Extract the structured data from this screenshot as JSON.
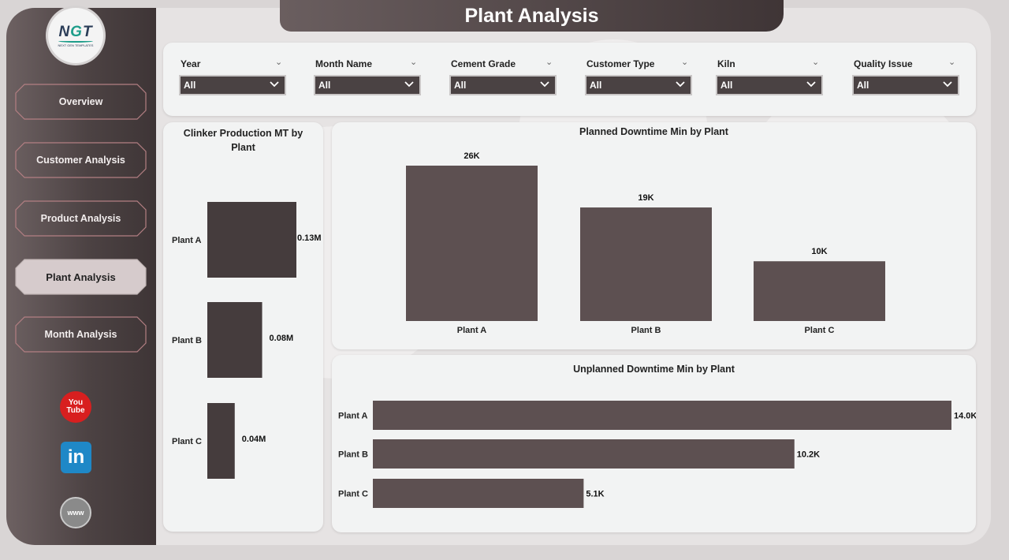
{
  "page": {
    "title": "Plant Analysis"
  },
  "logo": {
    "text_n": "N",
    "text_g": "G",
    "text_t": "T",
    "subtitle": "NEXT GEN TEMPLATES"
  },
  "nav": [
    {
      "label": "Overview",
      "active": false
    },
    {
      "label": "Customer Analysis",
      "active": false
    },
    {
      "label": "Product Analysis",
      "active": false
    },
    {
      "label": "Plant Analysis",
      "active": true
    },
    {
      "label": "Month Analysis",
      "active": false
    }
  ],
  "social": {
    "youtube_line1": "You",
    "youtube_line2": "Tube",
    "linkedin": "in",
    "web": "www"
  },
  "filters": [
    {
      "label": "Year",
      "value": "All"
    },
    {
      "label": "Month Name",
      "value": "All"
    },
    {
      "label": "Cement Grade",
      "value": "All"
    },
    {
      "label": "Customer Type",
      "value": "All"
    },
    {
      "label": "Kiln",
      "value": "All"
    },
    {
      "label": "Quality Issue",
      "value": "All"
    }
  ],
  "colors": {
    "bar": "#5d5051",
    "bar_dark": "#453c3d",
    "accent": "#4a4243"
  },
  "chart_data": [
    {
      "id": "clinker",
      "type": "bar",
      "orientation": "horizontal",
      "title": "Clinker Production MT by Plant",
      "categories": [
        "Plant A",
        "Plant B",
        "Plant C"
      ],
      "values": [
        0.13,
        0.08,
        0.04
      ],
      "data_labels": [
        "0.13M",
        "0.08M",
        "0.04M"
      ],
      "unit": "M"
    },
    {
      "id": "planned",
      "type": "bar",
      "orientation": "vertical",
      "title": "Planned Downtime Min by Plant",
      "categories": [
        "Plant A",
        "Plant B",
        "Plant C"
      ],
      "values": [
        26000,
        19000,
        10000
      ],
      "data_labels": [
        "26K",
        "19K",
        "10K"
      ]
    },
    {
      "id": "unplanned",
      "type": "bar",
      "orientation": "horizontal",
      "title": "Unplanned Downtime Min by Plant",
      "categories": [
        "Plant A",
        "Plant B",
        "Plant C"
      ],
      "values": [
        14000,
        10200,
        5100
      ],
      "data_labels": [
        "14.0K",
        "10.2K",
        "5.1K"
      ]
    }
  ]
}
